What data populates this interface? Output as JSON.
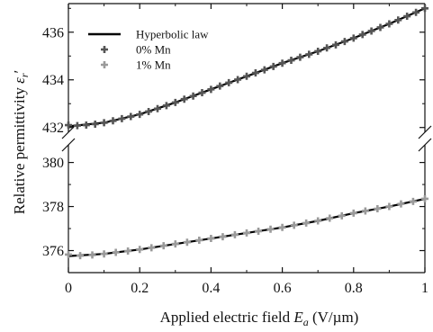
{
  "chart_data": {
    "type": "line",
    "broken_y_axis": true,
    "xlabel": "Applied electric field",
    "xlabel_symbol": "E",
    "xlabel_sub": "a",
    "xlabel_unit": " (V/µm)",
    "ylabel": "Relative permittivity",
    "ylabel_symbol": "ε",
    "ylabel_sub": "r",
    "ylabel_prime": "′",
    "xlim": [
      0,
      1
    ],
    "xticks": [
      0,
      0.2,
      0.4,
      0.6,
      0.8,
      1
    ],
    "xtick_labels": [
      "0",
      "0.2",
      "0.4",
      "0.6",
      "0.8",
      "1"
    ],
    "upper_ylim": [
      431.8,
      437.2
    ],
    "upper_yticks": [
      432,
      434,
      436
    ],
    "lower_ylim": [
      375,
      380.8
    ],
    "lower_yticks": [
      376,
      378,
      380
    ],
    "legend_position": "top-left",
    "grid": false,
    "series": [
      {
        "name": "Hyperbolic law",
        "style": "line",
        "color": "#000000",
        "segments": [
          {
            "x": [
              0,
              0.1,
              0.2,
              0.3,
              0.4,
              0.5,
              0.6,
              0.7,
              0.8,
              0.9,
              1.0
            ],
            "y": [
              432.05,
              432.2,
              432.55,
              433.05,
              433.6,
              434.15,
              434.7,
              435.2,
              435.75,
              436.35,
              437.0
            ]
          },
          {
            "x": [
              0,
              0.1,
              0.2,
              0.3,
              0.4,
              0.5,
              0.6,
              0.7,
              0.8,
              0.9,
              1.0
            ],
            "y": [
              375.75,
              375.85,
              376.05,
              376.3,
              376.55,
              376.8,
              377.05,
              377.35,
              377.7,
              378.0,
              378.35
            ]
          }
        ]
      },
      {
        "name": "0% Mn",
        "style": "plus",
        "color": "#555555",
        "x": [
          0,
          0.025,
          0.05,
          0.075,
          0.1,
          0.125,
          0.15,
          0.175,
          0.2,
          0.225,
          0.25,
          0.275,
          0.3,
          0.325,
          0.35,
          0.375,
          0.4,
          0.425,
          0.45,
          0.475,
          0.5,
          0.525,
          0.55,
          0.575,
          0.6,
          0.625,
          0.65,
          0.675,
          0.7,
          0.725,
          0.75,
          0.775,
          0.8,
          0.825,
          0.85,
          0.875,
          0.9,
          0.925,
          0.95,
          0.975,
          1.0
        ],
        "y": [
          432.1,
          432.08,
          432.1,
          432.14,
          432.2,
          432.28,
          432.37,
          432.46,
          432.55,
          432.67,
          432.79,
          432.92,
          433.05,
          433.19,
          433.32,
          433.46,
          433.6,
          433.74,
          433.88,
          434.01,
          434.15,
          434.29,
          434.42,
          434.56,
          434.7,
          434.82,
          434.95,
          435.07,
          435.2,
          435.34,
          435.47,
          435.61,
          435.75,
          435.9,
          436.05,
          436.2,
          436.35,
          436.51,
          436.67,
          436.83,
          437.0
        ]
      },
      {
        "name": "1% Mn",
        "style": "plus",
        "color": "#9a9a9a",
        "x": [
          0,
          0.033,
          0.067,
          0.1,
          0.133,
          0.167,
          0.2,
          0.233,
          0.267,
          0.3,
          0.333,
          0.367,
          0.4,
          0.433,
          0.467,
          0.5,
          0.533,
          0.567,
          0.6,
          0.633,
          0.667,
          0.7,
          0.733,
          0.767,
          0.8,
          0.833,
          0.867,
          0.9,
          0.933,
          0.967,
          1.0
        ],
        "y": [
          375.82,
          375.77,
          375.8,
          375.85,
          375.92,
          375.98,
          376.05,
          376.13,
          376.22,
          376.3,
          376.38,
          376.47,
          376.55,
          376.63,
          376.72,
          376.8,
          376.88,
          376.97,
          377.05,
          377.15,
          377.25,
          377.35,
          377.47,
          377.58,
          377.7,
          377.8,
          377.9,
          378.0,
          378.12,
          378.23,
          378.35
        ]
      }
    ]
  }
}
